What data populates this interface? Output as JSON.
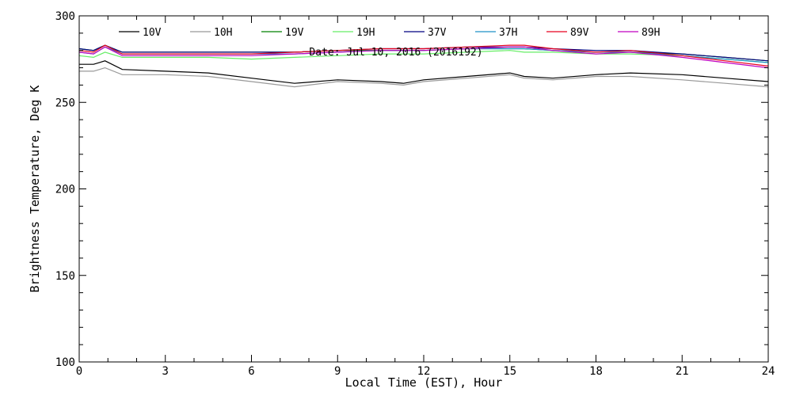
{
  "chart_data": {
    "type": "line",
    "title": "",
    "annotation": "Date: Jul 10, 2016 (2016192)",
    "xlabel": "Local Time (EST), Hour",
    "ylabel": "Brightness Temperature, Deg K",
    "xlim": [
      0,
      24
    ],
    "ylim": [
      100,
      300
    ],
    "xticks": [
      0,
      3,
      6,
      9,
      12,
      15,
      18,
      21,
      24
    ],
    "yticks": [
      100,
      150,
      200,
      250,
      300
    ],
    "grid": false,
    "legend_position": "top",
    "x": [
      0,
      0.5,
      0.9,
      1.5,
      3,
      4.5,
      6,
      7.5,
      9,
      10.5,
      11.3,
      12,
      13.5,
      15,
      15.5,
      16.5,
      18,
      19.2,
      21,
      22.5,
      24
    ],
    "series": [
      {
        "name": "10V",
        "color": "#000000",
        "values": [
          272,
          272,
          274,
          269,
          268,
          267,
          264,
          261,
          263,
          262,
          261,
          263,
          265,
          267,
          265,
          264,
          266,
          267,
          266,
          264,
          262
        ]
      },
      {
        "name": "10H",
        "color": "#999999",
        "values": [
          268,
          268,
          270,
          266,
          266,
          265,
          262,
          259,
          262,
          261,
          260,
          262,
          264,
          266,
          264,
          263,
          265,
          265,
          263,
          261,
          259
        ]
      },
      {
        "name": "19V",
        "color": "#008000",
        "values": [
          281,
          280,
          283,
          279,
          279,
          279,
          279,
          279,
          280,
          280,
          280,
          280,
          281,
          281,
          281,
          280,
          279,
          279,
          278,
          276,
          274
        ]
      },
      {
        "name": "19H",
        "color": "#66ee66",
        "values": [
          277,
          276,
          279,
          276,
          276,
          276,
          275,
          276,
          277,
          278,
          278,
          278,
          279,
          280,
          279,
          279,
          278,
          278,
          277,
          275,
          273
        ]
      },
      {
        "name": "37V",
        "color": "#000080",
        "values": [
          281,
          280,
          283,
          279,
          279,
          279,
          279,
          279,
          280,
          281,
          281,
          281,
          282,
          282,
          282,
          281,
          280,
          280,
          278,
          276,
          274
        ]
      },
      {
        "name": "37H",
        "color": "#1e90c8",
        "values": [
          279,
          278,
          282,
          278,
          278,
          278,
          278,
          278,
          279,
          280,
          280,
          280,
          281,
          281,
          281,
          280,
          279,
          279,
          277,
          275,
          273
        ]
      },
      {
        "name": "89V",
        "color": "#e8001e",
        "values": [
          280,
          279,
          283,
          278,
          278,
          278,
          278,
          279,
          280,
          281,
          281,
          281,
          282,
          283,
          283,
          281,
          279,
          280,
          277,
          274,
          271
        ]
      },
      {
        "name": "89H",
        "color": "#c000c0",
        "values": [
          279,
          278,
          282,
          277,
          277,
          277,
          277,
          278,
          279,
          280,
          280,
          280,
          281,
          282,
          282,
          280,
          278,
          279,
          276,
          273,
          270
        ]
      }
    ]
  }
}
